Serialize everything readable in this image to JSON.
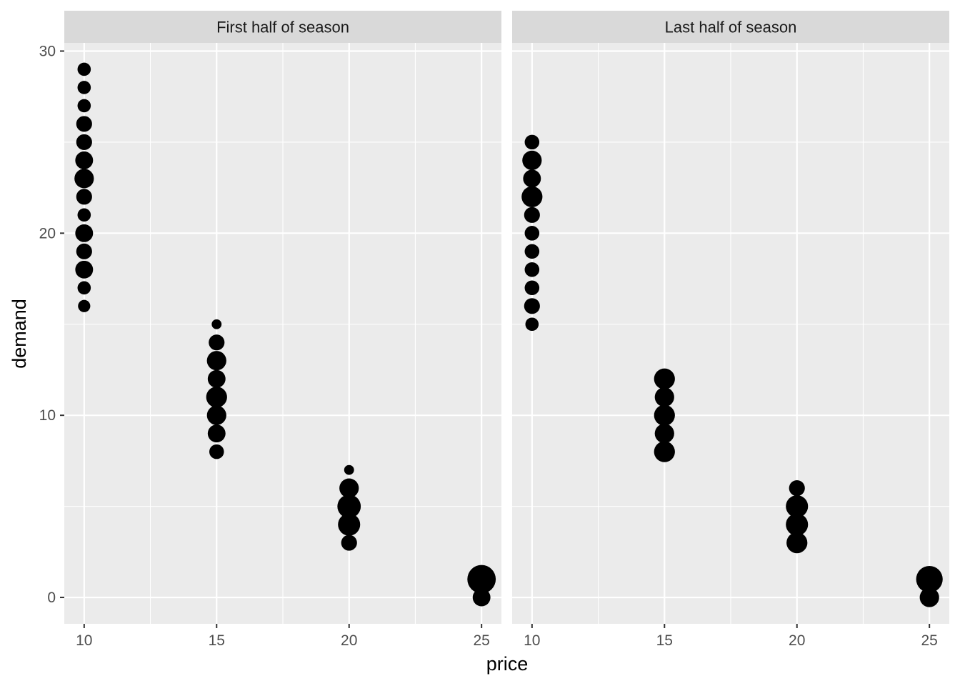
{
  "chart_data": {
    "type": "scatter",
    "xlabel": "price",
    "ylabel": "demand",
    "x_ticks": [
      10,
      15,
      20,
      25
    ],
    "y_ticks": [
      0,
      10,
      20,
      30
    ],
    "xlim": [
      9.25,
      25.75
    ],
    "ylim": [
      -1.45,
      30.45
    ],
    "grid": true,
    "size_encoded": true,
    "colors": {
      "panel_bg": "#ebebeb",
      "strip_bg": "#d9d9d9",
      "grid": "#ffffff",
      "points": "#000000",
      "ticks": "#333333"
    },
    "panels": [
      {
        "title": "First half of season",
        "points": [
          {
            "x": 10,
            "y": 29,
            "n": 1
          },
          {
            "x": 10,
            "y": 28,
            "n": 1
          },
          {
            "x": 10,
            "y": 27,
            "n": 1
          },
          {
            "x": 10,
            "y": 26,
            "n": 2
          },
          {
            "x": 10,
            "y": 25,
            "n": 2
          },
          {
            "x": 10,
            "y": 24,
            "n": 3
          },
          {
            "x": 10,
            "y": 23,
            "n": 4
          },
          {
            "x": 10,
            "y": 22,
            "n": 2
          },
          {
            "x": 10,
            "y": 21,
            "n": 1
          },
          {
            "x": 10,
            "y": 20,
            "n": 3
          },
          {
            "x": 10,
            "y": 19,
            "n": 2
          },
          {
            "x": 10,
            "y": 18,
            "n": 3
          },
          {
            "x": 10,
            "y": 17,
            "n": 1
          },
          {
            "x": 10,
            "y": 16,
            "n": 0.7
          },
          {
            "x": 15,
            "y": 15,
            "n": 0.2
          },
          {
            "x": 15,
            "y": 14,
            "n": 2
          },
          {
            "x": 15,
            "y": 13,
            "n": 4
          },
          {
            "x": 15,
            "y": 12,
            "n": 3
          },
          {
            "x": 15,
            "y": 11,
            "n": 5
          },
          {
            "x": 15,
            "y": 10,
            "n": 4
          },
          {
            "x": 15,
            "y": 9,
            "n": 3
          },
          {
            "x": 15,
            "y": 8,
            "n": 1.5
          },
          {
            "x": 20,
            "y": 7,
            "n": 0.2
          },
          {
            "x": 20,
            "y": 6,
            "n": 4
          },
          {
            "x": 20,
            "y": 5,
            "n": 7
          },
          {
            "x": 20,
            "y": 4,
            "n": 6
          },
          {
            "x": 20,
            "y": 3,
            "n": 2
          },
          {
            "x": 25,
            "y": 1,
            "n": 12
          },
          {
            "x": 25,
            "y": 0,
            "n": 3
          }
        ]
      },
      {
        "title": "Last half of season",
        "points": [
          {
            "x": 10,
            "y": 25,
            "n": 1.5
          },
          {
            "x": 10,
            "y": 24,
            "n": 4
          },
          {
            "x": 10,
            "y": 23,
            "n": 3
          },
          {
            "x": 10,
            "y": 22,
            "n": 5
          },
          {
            "x": 10,
            "y": 21,
            "n": 2
          },
          {
            "x": 10,
            "y": 20,
            "n": 1.5
          },
          {
            "x": 10,
            "y": 19,
            "n": 1.5
          },
          {
            "x": 10,
            "y": 18,
            "n": 1.5
          },
          {
            "x": 10,
            "y": 17,
            "n": 1.5
          },
          {
            "x": 10,
            "y": 16,
            "n": 2
          },
          {
            "x": 10,
            "y": 15,
            "n": 1
          },
          {
            "x": 15,
            "y": 12,
            "n": 5
          },
          {
            "x": 15,
            "y": 11,
            "n": 4
          },
          {
            "x": 15,
            "y": 10,
            "n": 5
          },
          {
            "x": 15,
            "y": 9,
            "n": 4
          },
          {
            "x": 15,
            "y": 8,
            "n": 5
          },
          {
            "x": 20,
            "y": 6,
            "n": 2
          },
          {
            "x": 20,
            "y": 5,
            "n": 6
          },
          {
            "x": 20,
            "y": 4,
            "n": 6
          },
          {
            "x": 20,
            "y": 3,
            "n": 5
          },
          {
            "x": 25,
            "y": 1,
            "n": 10
          },
          {
            "x": 25,
            "y": 0,
            "n": 4
          }
        ]
      }
    ]
  }
}
